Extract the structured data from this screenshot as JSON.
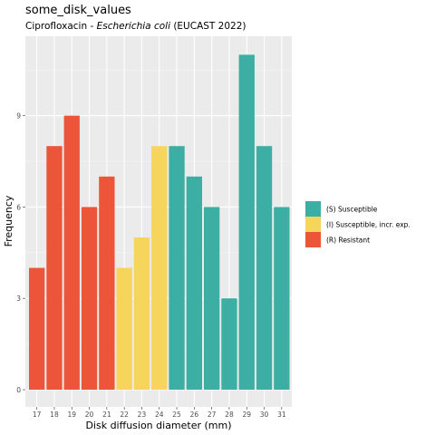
{
  "chart_data": {
    "type": "bar",
    "title": "some_disk_values",
    "subtitle": {
      "prefix": "Ciprofloxacin - ",
      "organism": "Escherichia coli",
      "suffix": " (EUCAST 2022)"
    },
    "xlabel": "Disk diffusion diameter (mm)",
    "ylabel": "Frequency",
    "categories": [
      "17",
      "18",
      "19",
      "20",
      "21",
      "22",
      "23",
      "24",
      "25",
      "26",
      "27",
      "28",
      "29",
      "30",
      "31"
    ],
    "values": [
      4,
      8,
      9,
      6,
      7,
      4,
      5,
      8,
      8,
      7,
      6,
      3,
      11,
      8,
      6
    ],
    "interpretation": [
      "R",
      "R",
      "R",
      "R",
      "R",
      "I",
      "I",
      "I",
      "S",
      "S",
      "S",
      "S",
      "S",
      "S",
      "S"
    ],
    "ylim": [
      0,
      11.5
    ],
    "yticks": [
      0,
      3,
      6,
      9
    ],
    "grid": true,
    "legend_position": "right",
    "legend": [
      {
        "key": "S",
        "label": "(S) Susceptible",
        "color": "#3CAEA3"
      },
      {
        "key": "I",
        "label": "(I) Susceptible, incr. exp.",
        "color": "#F6D55C"
      },
      {
        "key": "R",
        "label": "(R) Resistant",
        "color": "#ED553B"
      }
    ]
  }
}
